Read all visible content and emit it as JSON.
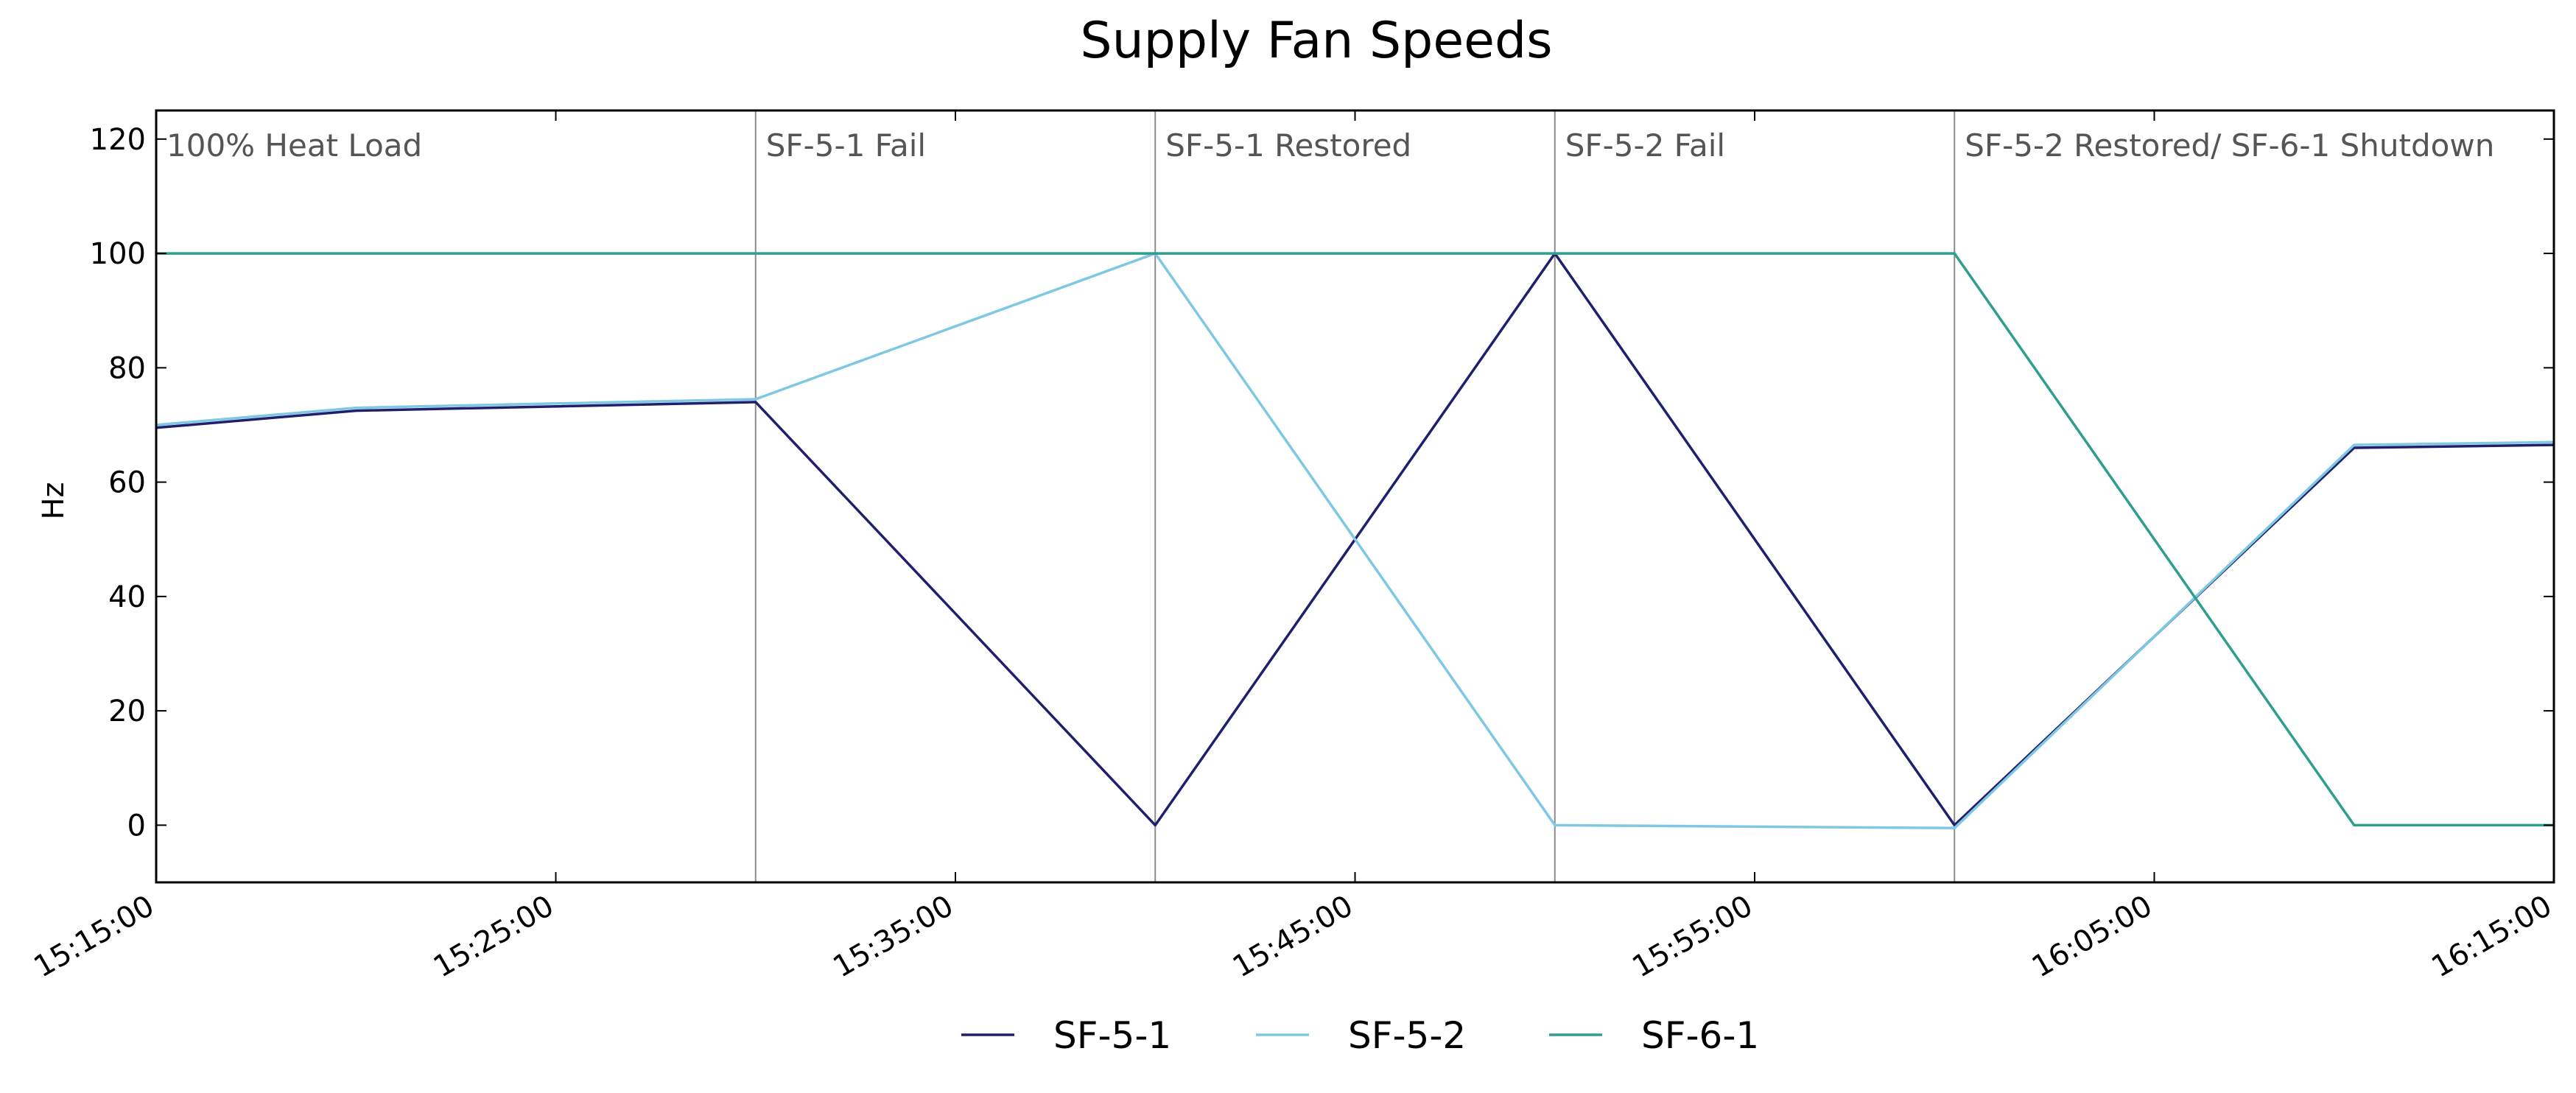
{
  "chart_data": {
    "type": "line",
    "title": "Supply Fan Speeds",
    "xlabel": "",
    "ylabel": "Hz",
    "x_type": "time",
    "xlim": [
      "15:15:00",
      "16:15:00"
    ],
    "ylim": [
      -10,
      125
    ],
    "x_ticks": [
      "15:15:00",
      "15:25:00",
      "15:35:00",
      "15:45:00",
      "15:55:00",
      "16:05:00",
      "16:15:00"
    ],
    "y_ticks": [
      0,
      20,
      40,
      60,
      80,
      100,
      120
    ],
    "grid": false,
    "legend_position": "bottom-center",
    "series": [
      {
        "name": "SF-5-1",
        "color": "#1f1f6e",
        "x": [
          "15:15:00",
          "15:20:00",
          "15:30:00",
          "15:40:00",
          "15:50:00",
          "16:00:00",
          "16:10:00",
          "16:15:00"
        ],
        "y": [
          69.5,
          72.5,
          74,
          0,
          100,
          0,
          66,
          66.5
        ]
      },
      {
        "name": "SF-5-2",
        "color": "#7ec8e3",
        "x": [
          "15:15:00",
          "15:20:00",
          "15:30:00",
          "15:40:00",
          "15:50:00",
          "16:00:00",
          "16:10:00",
          "16:15:00"
        ],
        "y": [
          70,
          73,
          74.5,
          100,
          0,
          -0.5,
          66.5,
          67
        ]
      },
      {
        "name": "SF-6-1",
        "color": "#2e9e8e",
        "x": [
          "15:15:00",
          "15:20:00",
          "15:30:00",
          "15:40:00",
          "15:50:00",
          "16:00:00",
          "16:10:00",
          "16:15:00"
        ],
        "y": [
          100,
          100,
          100,
          100,
          100,
          100,
          0,
          0
        ]
      }
    ],
    "events": [
      {
        "time": "15:15:00",
        "label": "100% Heat Load"
      },
      {
        "time": "15:30:00",
        "label": "SF-5-1 Fail"
      },
      {
        "time": "15:40:00",
        "label": "SF-5-1 Restored"
      },
      {
        "time": "15:50:00",
        "label": "SF-5-2 Fail"
      },
      {
        "time": "16:00:00",
        "label": "SF-5-2 Restored/ SF-6-1 Shutdown"
      }
    ]
  }
}
